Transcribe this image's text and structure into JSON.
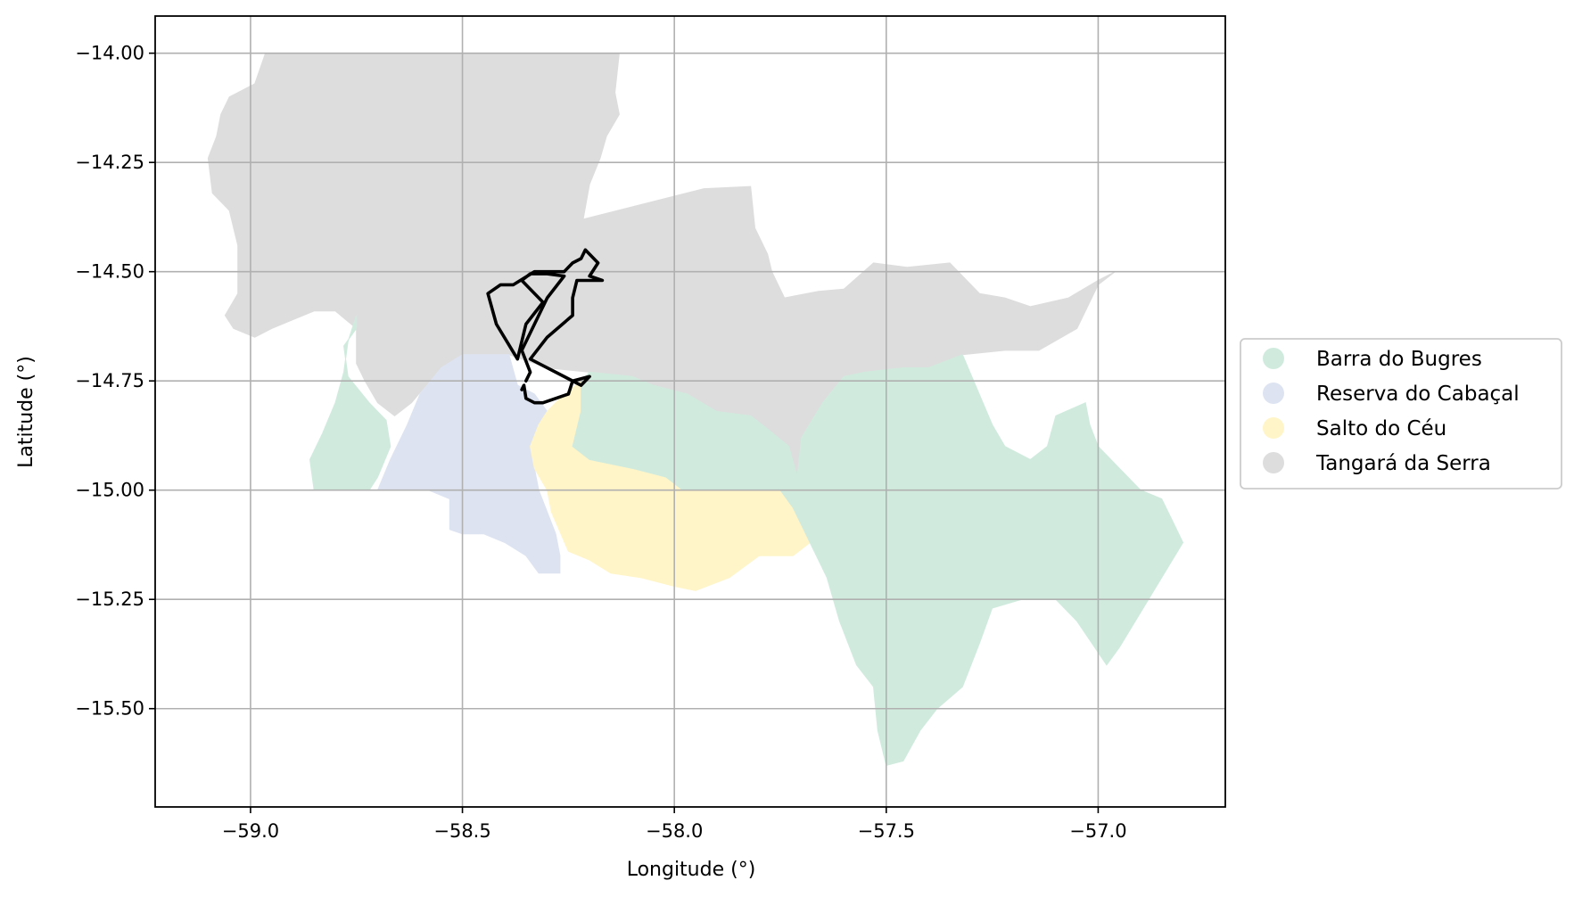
{
  "map": {
    "xlabel": "Longitude (°)",
    "ylabel": "Latitude (°)",
    "xlim": [
      -59.225,
      -56.7
    ],
    "ylim": [
      -15.725,
      -13.915
    ],
    "x_ticks": [
      -59.0,
      -58.5,
      -58.0,
      -57.5,
      -57.0
    ],
    "x_tick_labels": [
      "−59.0",
      "−58.5",
      "−58.0",
      "−57.5",
      "−57.0"
    ],
    "y_ticks": [
      -14.0,
      -14.25,
      -14.5,
      -14.75,
      -15.0,
      -15.25,
      -15.5
    ],
    "y_tick_labels": [
      "−14.00",
      "−14.25",
      "−14.50",
      "−14.75",
      "−15.00",
      "−15.25",
      "−15.50"
    ],
    "grid": true,
    "legend_position": "center-right outside",
    "regions": [
      {
        "name": "Tangará da Serra",
        "color": "#dddddd",
        "polygons": [
          [
            [
              -58.965,
              -14.0
            ],
            [
              -58.13,
              -14.0
            ],
            [
              -58.14,
              -14.09
            ],
            [
              -58.13,
              -14.14
            ],
            [
              -58.16,
              -14.19
            ],
            [
              -58.175,
              -14.24
            ],
            [
              -58.2,
              -14.3
            ],
            [
              -58.215,
              -14.38
            ],
            [
              -57.93,
              -14.31
            ],
            [
              -57.82,
              -14.305
            ],
            [
              -57.81,
              -14.4
            ],
            [
              -57.78,
              -14.46
            ],
            [
              -57.77,
              -14.5
            ],
            [
              -57.74,
              -14.56
            ],
            [
              -57.66,
              -14.545
            ],
            [
              -57.6,
              -14.54
            ],
            [
              -57.53,
              -14.48
            ],
            [
              -57.45,
              -14.49
            ],
            [
              -57.35,
              -14.48
            ],
            [
              -57.28,
              -14.55
            ],
            [
              -57.22,
              -14.56
            ],
            [
              -57.16,
              -14.58
            ],
            [
              -57.07,
              -14.56
            ],
            [
              -57.0,
              -14.52
            ],
            [
              -56.96,
              -14.5
            ],
            [
              -57.0,
              -14.53
            ],
            [
              -57.05,
              -14.63
            ],
            [
              -57.14,
              -14.68
            ],
            [
              -57.22,
              -14.68
            ],
            [
              -57.32,
              -14.69
            ],
            [
              -57.4,
              -14.72
            ],
            [
              -57.46,
              -14.72
            ],
            [
              -57.55,
              -14.73
            ],
            [
              -57.6,
              -14.74
            ],
            [
              -57.65,
              -14.8
            ],
            [
              -57.7,
              -14.88
            ],
            [
              -57.71,
              -14.97
            ],
            [
              -57.73,
              -14.9
            ],
            [
              -57.78,
              -14.86
            ],
            [
              -57.82,
              -14.83
            ],
            [
              -57.9,
              -14.82
            ],
            [
              -57.97,
              -14.78
            ],
            [
              -58.05,
              -14.76
            ],
            [
              -58.1,
              -14.74
            ],
            [
              -58.2,
              -14.73
            ],
            [
              -58.3,
              -14.72
            ],
            [
              -58.39,
              -14.69
            ],
            [
              -58.5,
              -14.69
            ],
            [
              -58.56,
              -14.73
            ],
            [
              -58.62,
              -14.8
            ],
            [
              -58.66,
              -14.83
            ],
            [
              -58.7,
              -14.8
            ],
            [
              -58.73,
              -14.75
            ],
            [
              -58.75,
              -14.71
            ],
            [
              -58.75,
              -14.63
            ],
            [
              -58.8,
              -14.59
            ],
            [
              -58.85,
              -14.59
            ],
            [
              -58.9,
              -14.61
            ],
            [
              -58.95,
              -14.63
            ],
            [
              -58.99,
              -14.65
            ],
            [
              -59.04,
              -14.63
            ],
            [
              -59.06,
              -14.6
            ],
            [
              -59.03,
              -14.55
            ],
            [
              -59.03,
              -14.44
            ],
            [
              -59.05,
              -14.36
            ],
            [
              -59.09,
              -14.32
            ],
            [
              -59.1,
              -14.24
            ],
            [
              -59.08,
              -14.19
            ],
            [
              -59.07,
              -14.14
            ],
            [
              -59.05,
              -14.1
            ],
            [
              -58.99,
              -14.07
            ]
          ]
        ]
      },
      {
        "name": "Reserva do Cabaçal",
        "color": "#dde3f1",
        "polygons": [
          [
            [
              -58.5,
              -14.69
            ],
            [
              -58.39,
              -14.69
            ],
            [
              -58.37,
              -14.76
            ],
            [
              -58.33,
              -14.78
            ],
            [
              -58.3,
              -14.82
            ],
            [
              -58.32,
              -14.85
            ],
            [
              -58.34,
              -14.9
            ],
            [
              -58.33,
              -14.95
            ],
            [
              -58.32,
              -15.0
            ],
            [
              -58.3,
              -15.05
            ],
            [
              -58.28,
              -15.1
            ],
            [
              -58.27,
              -15.15
            ],
            [
              -58.27,
              -15.19
            ],
            [
              -58.32,
              -15.19
            ],
            [
              -58.35,
              -15.15
            ],
            [
              -58.4,
              -15.12
            ],
            [
              -58.45,
              -15.1
            ],
            [
              -58.5,
              -15.1
            ],
            [
              -58.53,
              -15.09
            ],
            [
              -58.53,
              -15.02
            ],
            [
              -58.58,
              -15.0
            ],
            [
              -58.7,
              -15.0
            ],
            [
              -58.67,
              -14.93
            ],
            [
              -58.63,
              -14.85
            ],
            [
              -58.6,
              -14.78
            ],
            [
              -58.55,
              -14.72
            ]
          ]
        ]
      },
      {
        "name": "Salto do Céu",
        "color": "#fff5c8",
        "polygons": [
          [
            [
              -58.22,
              -14.75
            ],
            [
              -58.22,
              -14.82
            ],
            [
              -58.24,
              -14.9
            ],
            [
              -58.2,
              -14.93
            ],
            [
              -58.1,
              -14.95
            ],
            [
              -58.02,
              -14.97
            ],
            [
              -57.98,
              -15.0
            ],
            [
              -57.9,
              -15.0
            ],
            [
              -57.82,
              -15.0
            ],
            [
              -57.75,
              -15.0
            ],
            [
              -57.72,
              -15.04
            ],
            [
              -57.68,
              -15.12
            ],
            [
              -57.72,
              -15.15
            ],
            [
              -57.8,
              -15.15
            ],
            [
              -57.87,
              -15.2
            ],
            [
              -57.95,
              -15.23
            ],
            [
              -58.0,
              -15.22
            ],
            [
              -58.08,
              -15.2
            ],
            [
              -58.15,
              -15.19
            ],
            [
              -58.2,
              -15.16
            ],
            [
              -58.25,
              -15.14
            ],
            [
              -58.29,
              -15.05
            ],
            [
              -58.3,
              -15.0
            ],
            [
              -58.33,
              -14.95
            ],
            [
              -58.34,
              -14.9
            ],
            [
              -58.32,
              -14.85
            ],
            [
              -58.3,
              -14.82
            ],
            [
              -58.27,
              -14.79
            ]
          ]
        ]
      },
      {
        "name": "Barra do Bugres",
        "color": "#d0ebde",
        "polygons": [
          [
            [
              -58.75,
              -14.6
            ],
            [
              -58.75,
              -14.63
            ],
            [
              -58.78,
              -14.67
            ],
            [
              -58.77,
              -14.74
            ],
            [
              -58.72,
              -14.8
            ],
            [
              -58.68,
              -14.84
            ],
            [
              -58.67,
              -14.9
            ],
            [
              -58.7,
              -14.97
            ],
            [
              -58.72,
              -15.0
            ],
            [
              -58.85,
              -15.0
            ],
            [
              -58.86,
              -14.93
            ],
            [
              -58.83,
              -14.87
            ],
            [
              -58.8,
              -14.8
            ],
            [
              -58.78,
              -14.73
            ],
            [
              -58.77,
              -14.66
            ]
          ],
          [
            [
              -58.2,
              -14.73
            ],
            [
              -58.1,
              -14.74
            ],
            [
              -58.05,
              -14.76
            ],
            [
              -57.97,
              -14.78
            ],
            [
              -57.9,
              -14.82
            ],
            [
              -57.82,
              -14.83
            ],
            [
              -57.78,
              -14.86
            ],
            [
              -57.73,
              -14.9
            ],
            [
              -57.71,
              -14.97
            ],
            [
              -57.7,
              -14.88
            ],
            [
              -57.65,
              -14.8
            ],
            [
              -57.6,
              -14.74
            ],
            [
              -57.55,
              -14.73
            ],
            [
              -57.46,
              -14.72
            ],
            [
              -57.4,
              -14.72
            ],
            [
              -57.32,
              -14.69
            ],
            [
              -57.25,
              -14.85
            ],
            [
              -57.22,
              -14.9
            ],
            [
              -57.16,
              -14.93
            ],
            [
              -57.12,
              -14.9
            ],
            [
              -57.1,
              -14.83
            ],
            [
              -57.03,
              -14.8
            ],
            [
              -57.02,
              -14.85
            ],
            [
              -57.0,
              -14.9
            ],
            [
              -56.95,
              -14.95
            ],
            [
              -56.9,
              -15.0
            ],
            [
              -56.85,
              -15.02
            ],
            [
              -56.82,
              -15.08
            ],
            [
              -56.8,
              -15.12
            ],
            [
              -56.85,
              -15.2
            ],
            [
              -56.9,
              -15.28
            ],
            [
              -56.95,
              -15.36
            ],
            [
              -56.98,
              -15.4
            ],
            [
              -57.05,
              -15.3
            ],
            [
              -57.1,
              -15.25
            ],
            [
              -57.18,
              -15.25
            ],
            [
              -57.25,
              -15.27
            ],
            [
              -57.28,
              -15.35
            ],
            [
              -57.32,
              -15.45
            ],
            [
              -57.38,
              -15.5
            ],
            [
              -57.42,
              -15.55
            ],
            [
              -57.46,
              -15.62
            ],
            [
              -57.5,
              -15.63
            ],
            [
              -57.52,
              -15.55
            ],
            [
              -57.53,
              -15.45
            ],
            [
              -57.57,
              -15.4
            ],
            [
              -57.61,
              -15.3
            ],
            [
              -57.64,
              -15.2
            ],
            [
              -57.68,
              -15.12
            ],
            [
              -57.72,
              -15.04
            ],
            [
              -57.75,
              -15.0
            ],
            [
              -57.82,
              -15.0
            ],
            [
              -57.9,
              -15.0
            ],
            [
              -57.98,
              -15.0
            ],
            [
              -58.02,
              -14.97
            ],
            [
              -58.1,
              -14.95
            ],
            [
              -58.2,
              -14.93
            ],
            [
              -58.24,
              -14.9
            ],
            [
              -58.22,
              -14.82
            ],
            [
              -58.22,
              -14.75
            ]
          ]
        ]
      }
    ],
    "route": [
      [
        -58.35,
        -14.75
      ],
      [
        -58.34,
        -14.73
      ],
      [
        -58.36,
        -14.68
      ],
      [
        -58.3,
        -14.56
      ],
      [
        -58.26,
        -14.51
      ],
      [
        -58.3,
        -14.505
      ],
      [
        -58.34,
        -14.505
      ],
      [
        -58.36,
        -14.52
      ],
      [
        -58.31,
        -14.57
      ],
      [
        -58.35,
        -14.62
      ],
      [
        -58.37,
        -14.7
      ],
      [
        -58.42,
        -14.62
      ],
      [
        -58.44,
        -14.55
      ],
      [
        -58.41,
        -14.53
      ],
      [
        -58.38,
        -14.53
      ],
      [
        -58.33,
        -14.5
      ],
      [
        -58.26,
        -14.5
      ],
      [
        -58.24,
        -14.48
      ],
      [
        -58.22,
        -14.47
      ],
      [
        -58.21,
        -14.45
      ],
      [
        -58.18,
        -14.48
      ],
      [
        -58.2,
        -14.51
      ],
      [
        -58.17,
        -14.52
      ],
      [
        -58.23,
        -14.52
      ],
      [
        -58.24,
        -14.56
      ],
      [
        -58.24,
        -14.6
      ],
      [
        -58.3,
        -14.65
      ],
      [
        -58.34,
        -14.7
      ],
      [
        -58.22,
        -14.76
      ],
      [
        -58.2,
        -14.74
      ],
      [
        -58.24,
        -14.75
      ],
      [
        -58.25,
        -14.78
      ],
      [
        -58.28,
        -14.79
      ],
      [
        -58.31,
        -14.8
      ],
      [
        -58.33,
        -14.8
      ],
      [
        -58.35,
        -14.79
      ],
      [
        -58.355,
        -14.76
      ],
      [
        -58.36,
        -14.77
      ]
    ]
  },
  "legend": {
    "items": [
      {
        "label": "Barra do Bugres",
        "color": "#d0ebde"
      },
      {
        "label": "Reserva do Cabaçal",
        "color": "#dde3f1"
      },
      {
        "label": "Salto do Céu",
        "color": "#fff5c8"
      },
      {
        "label": "Tangará da Serra",
        "color": "#dddddd"
      }
    ]
  }
}
